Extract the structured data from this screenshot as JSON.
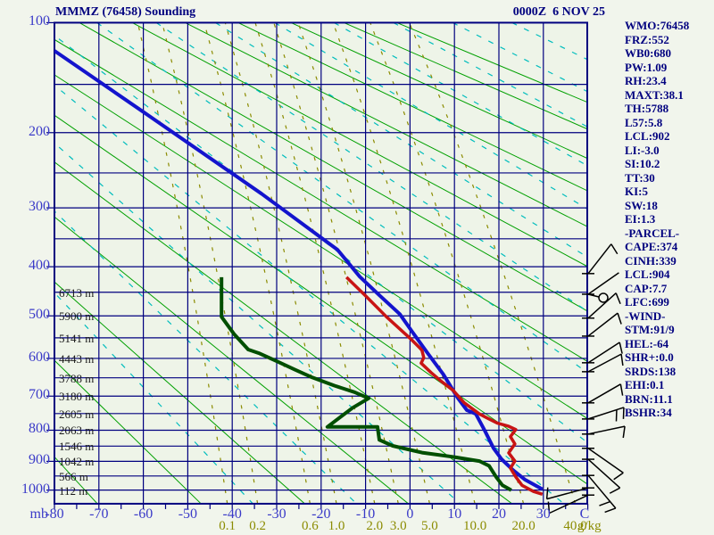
{
  "header": {
    "title": "MMMZ (76458) Sounding",
    "datetime": "0000Z  6 NOV 25"
  },
  "panel": {
    "items": [
      "WMO:76458",
      "FRZ:552",
      "WB0:680",
      "PW:1.09",
      "RH:23.4",
      "MAXT:38.1",
      "TH:5788",
      "L57:5.8",
      "LCL:902",
      "LI:-3.0",
      "SI:10.2",
      "TT:30",
      "KI:5",
      "SW:18",
      "EI:1.3",
      "-PARCEL-",
      "CAPE:374",
      "CINH:339",
      "LCL:904",
      "CAP:7.7",
      "LFC:699",
      "-WIND-",
      "STM:91/9",
      "HEL:-64",
      "SHR+:0.0",
      "SRDS:138",
      "EHI:0.1",
      "BRN:11.1",
      "BSHR:34"
    ]
  },
  "chart_data": {
    "type": "line",
    "diagram": "stuve_sounding",
    "pressure_axis": {
      "unit": "mb",
      "tick_labels": [
        100,
        200,
        300,
        400,
        500,
        600,
        700,
        800,
        900,
        1000
      ],
      "gridline_step_mb": 50,
      "range": [
        100,
        1050
      ]
    },
    "temp_axis": {
      "unit": "C",
      "tick_labels": [
        -80,
        -70,
        -60,
        -50,
        -40,
        -30,
        -20,
        -10,
        0,
        10,
        20,
        30
      ],
      "range": [
        -80,
        40
      ]
    },
    "mixing_axis": {
      "unit": "g/kg",
      "tick_labels": [
        "0.1",
        "0.2",
        "0.6",
        "1.0",
        "2.0",
        "3.0",
        "5.0",
        "10.0",
        "20.0",
        "40.0"
      ],
      "values": [
        0.1,
        0.2,
        0.6,
        1.0,
        2.0,
        3.0,
        5.0,
        10.0,
        20.0,
        40.0
      ]
    },
    "height_labels": [
      {
        "pressure": 450,
        "label": "6713 m"
      },
      {
        "pressure": 500,
        "label": "5900 m"
      },
      {
        "pressure": 550,
        "label": "5141 m"
      },
      {
        "pressure": 600,
        "label": "4443 m"
      },
      {
        "pressure": 650,
        "label": "3788 m"
      },
      {
        "pressure": 700,
        "label": "3180 m"
      },
      {
        "pressure": 750,
        "label": "2605 m"
      },
      {
        "pressure": 800,
        "label": "2063 m"
      },
      {
        "pressure": 850,
        "label": "1546 m"
      },
      {
        "pressure": 900,
        "label": "1042 m"
      },
      {
        "pressure": 950,
        "label": "566 m"
      },
      {
        "pressure": 1000,
        "label": "112 m"
      }
    ],
    "dry_adiabats_theta_K": [
      200,
      223,
      246,
      269,
      292,
      315,
      338,
      361,
      384,
      407,
      430,
      453,
      476,
      499,
      522
    ],
    "moist_adiabats_theta_K": [
      234.5,
      257.5,
      280.5,
      303.5,
      326.5,
      349.5,
      372.5,
      395.5,
      418.5,
      441.5,
      464.5,
      487.5,
      510.5
    ],
    "series": [
      {
        "name": "temperature",
        "color": "#1414cd",
        "width": 4,
        "points": [
          [
            121,
            -80
          ],
          [
            177,
            -60.1
          ],
          [
            279,
            -33.4
          ],
          [
            369,
            -16.3
          ],
          [
            419,
            -11.3
          ],
          [
            456,
            -6.9
          ],
          [
            496,
            -2.3
          ],
          [
            536,
            0.5
          ],
          [
            589,
            4.1
          ],
          [
            641,
            7.5
          ],
          [
            684,
            9.7
          ],
          [
            706,
            10.8
          ],
          [
            740,
            12.8
          ],
          [
            751,
            14.8
          ],
          [
            801,
            16.8
          ],
          [
            857,
            18.8
          ],
          [
            893,
            20.6
          ],
          [
            930,
            23.2
          ],
          [
            962,
            25.8
          ],
          [
            997,
            29.8
          ]
        ]
      },
      {
        "name": "dewpoint",
        "color": "#004f00",
        "width": 4,
        "points": [
          [
            420,
            -42.4
          ],
          [
            502,
            -42.4
          ],
          [
            541,
            -39.6
          ],
          [
            578,
            -36.4
          ],
          [
            587,
            -34
          ],
          [
            607,
            -30
          ],
          [
            628,
            -26
          ],
          [
            649,
            -22
          ],
          [
            671,
            -17
          ],
          [
            689,
            -12.5
          ],
          [
            706,
            -9.3
          ],
          [
            733,
            -12.9
          ],
          [
            790,
            -18.6
          ],
          [
            790,
            -7.3
          ],
          [
            830,
            -6.9
          ],
          [
            849,
            -3.9
          ],
          [
            871,
            2.7
          ],
          [
            885,
            9.6
          ],
          [
            899,
            15.6
          ],
          [
            915,
            17.8
          ],
          [
            954,
            19.4
          ],
          [
            983,
            20.8
          ],
          [
            1000,
            22.8
          ]
        ]
      },
      {
        "name": "parcel",
        "color": "#c81414",
        "width": 3.5,
        "points": [
          [
            420,
            -14.3
          ],
          [
            458,
            -9.9
          ],
          [
            502,
            -5.3
          ],
          [
            552,
            0.1
          ],
          [
            573,
            2.1
          ],
          [
            580,
            2.7
          ],
          [
            598,
            3.1
          ],
          [
            612,
            2.5
          ],
          [
            636,
            4.7
          ],
          [
            660,
            7.1
          ],
          [
            684,
            9.7
          ],
          [
            719,
            12.2
          ],
          [
            751,
            15.6
          ],
          [
            762,
            17.2
          ],
          [
            778,
            19.6
          ],
          [
            788,
            22.2
          ],
          [
            798,
            23.8
          ],
          [
            820,
            22.6
          ],
          [
            843,
            23.6
          ],
          [
            872,
            22.2
          ],
          [
            899,
            23.6
          ],
          [
            923,
            22.6
          ],
          [
            953,
            23.8
          ],
          [
            983,
            25.2
          ],
          [
            1005,
            27.8
          ],
          [
            1015,
            29.8
          ]
        ]
      }
    ],
    "wind_barbs": [
      {
        "p": 413,
        "dir": 52,
        "feathers": 1
      },
      {
        "p": 454,
        "dir": 35,
        "feathers": 0,
        "marker": true
      },
      {
        "p": 505,
        "dir": 42,
        "feathers": 1
      },
      {
        "p": 546,
        "dir": 38,
        "feathers": 1
      },
      {
        "p": 611,
        "dir": 33,
        "feathers": 1
      },
      {
        "p": 634,
        "dir": 28,
        "feathers": 1
      },
      {
        "p": 719,
        "dir": 30,
        "feathers": 1
      },
      {
        "p": 766,
        "dir": 18,
        "feathers": 2
      },
      {
        "p": 812,
        "dir": 12,
        "feathers": 1
      },
      {
        "p": 857,
        "dir": -35,
        "feathers": 1
      },
      {
        "p": 893,
        "dir": -42,
        "feathers": 1
      },
      {
        "p": 948,
        "dir": -50,
        "feathers": 2
      },
      {
        "p": 992,
        "dir": 195,
        "feathers": 1
      },
      {
        "p": 1018,
        "dir": 205,
        "feathers": 1
      }
    ]
  },
  "colors": {
    "background": "#f1f5ec",
    "grid": "#00007f",
    "axis_label": "#3a3ac8",
    "title": "#00007f",
    "dry_adiabat": "#00a000",
    "moist_adiabat": "#00bdbd",
    "mixing_ratio": "#8b8b00",
    "temperature": "#1414cd",
    "dewpoint": "#004f00",
    "parcel": "#c81414",
    "heights": "#1a1a1a",
    "wind": "#000000"
  }
}
